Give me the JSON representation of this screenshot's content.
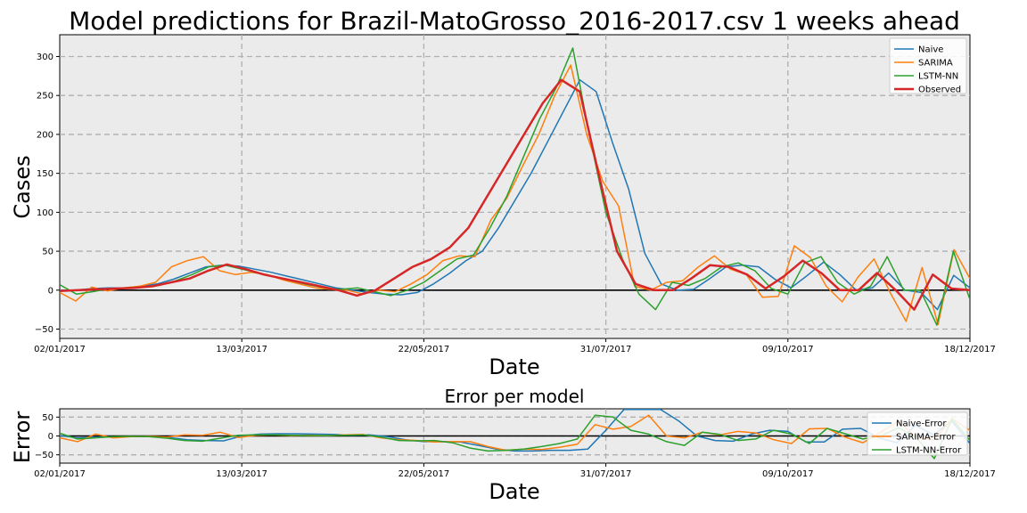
{
  "chart_data": [
    {
      "type": "line",
      "title": "Model predictions for Brazil-MatoGrosso_2016-2017.csv 1 weeks ahead",
      "xlabel": "Date",
      "ylabel": "Cases",
      "x_ticks": [
        "02/01/2017",
        "13/03/2017",
        "22/05/2017",
        "31/07/2017",
        "09/10/2017",
        "18/12/2017"
      ],
      "y_ticks": [
        "−50",
        "0",
        "50",
        "100",
        "150",
        "200",
        "250",
        "300"
      ],
      "ylim": [
        -62,
        328
      ],
      "grid": true,
      "legend_position": "top-right",
      "series": [
        {
          "name": "Naive",
          "color": "#1f77b4",
          "values": [
            0,
            0,
            2,
            3,
            3,
            5,
            8,
            14,
            22,
            30,
            32,
            31,
            27,
            23,
            18,
            13,
            8,
            3,
            0,
            -3,
            -5,
            -6,
            -3,
            8,
            22,
            38,
            50,
            80,
            115,
            150,
            190,
            230,
            270,
            255,
            190,
            130,
            47,
            8,
            0,
            1,
            15,
            30,
            32,
            30,
            14,
            3,
            19,
            36,
            20,
            0,
            3,
            22,
            0,
            -3,
            -25,
            19,
            3
          ]
        },
        {
          "name": "SARIMA",
          "color": "#ff7f0e",
          "values": [
            -3,
            -14,
            4,
            -1,
            3,
            5,
            10,
            30,
            38,
            43,
            25,
            20,
            23,
            20,
            13,
            8,
            3,
            1,
            0,
            -5,
            0,
            -2,
            8,
            20,
            38,
            44,
            43,
            90,
            118,
            160,
            200,
            250,
            289,
            200,
            140,
            108,
            5,
            0,
            10,
            12,
            30,
            44,
            27,
            20,
            -9,
            -8,
            57,
            42,
            5,
            -15,
            17,
            40,
            -3,
            -40,
            29,
            -44,
            52,
            15
          ]
        },
        {
          "name": "LSTM-NN",
          "color": "#2ca02c",
          "values": [
            7,
            -5,
            -2,
            2,
            3,
            4,
            6,
            12,
            20,
            30,
            32,
            27,
            22,
            17,
            12,
            7,
            3,
            1,
            3,
            -2,
            -7,
            0,
            10,
            25,
            40,
            45,
            80,
            120,
            170,
            220,
            260,
            311,
            200,
            100,
            40,
            -5,
            -25,
            10,
            6,
            15,
            30,
            35,
            25,
            2,
            -5,
            35,
            43,
            10,
            -5,
            5,
            43,
            0,
            0,
            -45,
            50,
            -12
          ]
        },
        {
          "name": "Observed",
          "color": "#d62728",
          "width": 2.5,
          "values": [
            -1,
            0,
            1,
            2,
            3,
            5,
            10,
            15,
            25,
            33,
            27,
            20,
            15,
            10,
            5,
            0,
            -7,
            0,
            15,
            30,
            40,
            55,
            80,
            120,
            160,
            200,
            240,
            270,
            255,
            150,
            50,
            8,
            0,
            0,
            15,
            32,
            30,
            20,
            2,
            18,
            38,
            22,
            0,
            0,
            22,
            0,
            -25,
            20,
            2,
            0
          ]
        }
      ]
    },
    {
      "type": "line",
      "title": "Error per model",
      "xlabel": "Date",
      "ylabel": "Error",
      "x_ticks": [
        "02/01/2017",
        "13/03/2017",
        "22/05/2017",
        "31/07/2017",
        "09/10/2017",
        "18/12/2017"
      ],
      "y_ticks": [
        "−50",
        "0",
        "50"
      ],
      "ylim": [
        -72,
        72
      ],
      "grid": true,
      "legend_position": "right",
      "series": [
        {
          "name": "Naive-Error",
          "color": "#1f77b4",
          "values": [
            1,
            -5,
            -3,
            -2,
            -2,
            -2,
            -4,
            -10,
            -12,
            -13,
            0,
            5,
            6,
            6,
            5,
            4,
            2,
            3,
            -2,
            -10,
            -15,
            -15,
            -16,
            -25,
            -35,
            -40,
            -40,
            -38,
            -38,
            -35,
            15,
            70,
            70,
            70,
            40,
            0,
            -12,
            -14,
            5,
            15,
            12,
            -16,
            -16,
            18,
            20,
            -5,
            -18,
            28,
            3,
            40,
            -20
          ]
        },
        {
          "name": "SARIMA-Error",
          "color": "#ff7f0e",
          "values": [
            -5,
            -15,
            5,
            -5,
            -2,
            -1,
            -3,
            3,
            2,
            10,
            -4,
            2,
            3,
            1,
            2,
            1,
            3,
            4,
            -5,
            -10,
            -12,
            -16,
            -15,
            -15,
            -28,
            -38,
            -35,
            -36,
            -30,
            -22,
            30,
            18,
            25,
            55,
            0,
            -5,
            10,
            3,
            12,
            8,
            -10,
            -20,
            19,
            20,
            -3,
            -18,
            10,
            40,
            -5,
            -10,
            45,
            15
          ]
        },
        {
          "name": "LSTM-NN-Error",
          "color": "#2ca02c",
          "values": [
            7,
            -8,
            -5,
            -2,
            -1,
            -2,
            -6,
            -12,
            -14,
            -6,
            2,
            3,
            3,
            2,
            1,
            1,
            2,
            3,
            -3,
            -12,
            -13,
            -12,
            -18,
            -32,
            -40,
            -38,
            -35,
            -28,
            -20,
            -8,
            55,
            50,
            15,
            5,
            -15,
            -25,
            10,
            4,
            -12,
            -8,
            15,
            5,
            -20,
            20,
            6,
            -8,
            0,
            22,
            -5,
            -60,
            45,
            -12
          ]
        }
      ]
    }
  ]
}
